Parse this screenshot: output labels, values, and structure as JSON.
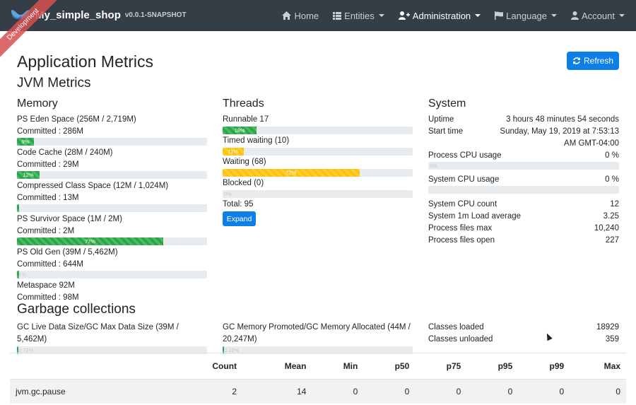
{
  "navbar": {
    "brand_name": "My_simple_shop",
    "brand_version": "v0.0.1-SNAPSHOT",
    "ribbon": "Development",
    "items": [
      {
        "label": "Home",
        "icon": "home-icon",
        "dropdown": false,
        "active": false
      },
      {
        "label": "Entities",
        "icon": "th-list-icon",
        "dropdown": true,
        "active": false
      },
      {
        "label": "Administration",
        "icon": "user-plus-icon",
        "dropdown": true,
        "active": true
      },
      {
        "label": "Language",
        "icon": "flag-icon",
        "dropdown": true,
        "active": false
      },
      {
        "label": "Account",
        "icon": "user-icon",
        "dropdown": true,
        "active": false
      }
    ]
  },
  "page": {
    "title": "Application Metrics",
    "refresh_label": "Refresh",
    "jvm_title": "JVM Metrics"
  },
  "memory": {
    "title": "Memory",
    "items": [
      {
        "name": "PS Eden Space (256M / 2,719M)",
        "committed": "Committed : 286M",
        "percent": 9,
        "bar_text": "9%"
      },
      {
        "name": "Code Cache (28M / 240M)",
        "committed": "Committed : 29M",
        "percent": 12,
        "bar_text": "12%"
      },
      {
        "name": "Compressed Class Space (12M / 1,024M)",
        "committed": "Committed : 13M",
        "percent": 1,
        "bar_text": ""
      },
      {
        "name": "PS Survivor Space (1M / 2M)",
        "committed": "Committed : 2M",
        "percent": 77,
        "bar_text": "77%"
      },
      {
        "name": "PS Old Gen (39M / 5,462M)",
        "committed": "Committed : 644M",
        "percent": 1,
        "bar_text": "1%"
      },
      {
        "name": "Metaspace 92M",
        "committed": "Committed : 98M",
        "percent": null,
        "bar_text": ""
      }
    ]
  },
  "threads": {
    "title": "Threads",
    "items": [
      {
        "label": "Runnable 17",
        "percent": 18,
        "bar_text": "18%",
        "color": "#28a745"
      },
      {
        "label": "Timed waiting (10)",
        "percent": 11,
        "bar_text": "11%",
        "color": "#ffc107"
      },
      {
        "label": "Waiting (68)",
        "percent": 72,
        "bar_text": "72%",
        "color": "#ffc107"
      },
      {
        "label": "Blocked (0)",
        "percent": 0,
        "bar_text": "0%",
        "color": "#dc3545"
      }
    ],
    "total": "Total: 95",
    "expand_label": "Expand"
  },
  "system": {
    "title": "System",
    "uptime_label": "Uptime",
    "uptime_value": "3 hours 48 minutes 54 seconds",
    "start_label": "Start time",
    "start_value_1": "Sunday, May 19, 2019 at 7:53:13",
    "start_value_2": "AM GMT-04:00",
    "process_cpu_label": "Process CPU usage",
    "process_cpu_value": "0 %",
    "process_cpu_bar": "0%",
    "system_cpu_label": "System CPU usage",
    "system_cpu_value": "0 %",
    "system_cpu_bar": "",
    "rows": [
      {
        "label": "System CPU count",
        "value": "12"
      },
      {
        "label": "System 1m Load average",
        "value": "3.25"
      },
      {
        "label": "Process files max",
        "value": "10,240"
      },
      {
        "label": "Process files open",
        "value": "227"
      }
    ]
  },
  "gc": {
    "title": "Garbage collections",
    "live_label_1": "GC Live Data Size/GC Max Data Size (39M /",
    "live_label_2": "5,462M)",
    "live_percent": 0.72,
    "live_bar": "0.72%",
    "promoted_label_1": "GC Memory Promoted/GC Memory Allocated (44M /",
    "promoted_label_2": "20,247M)",
    "promoted_percent": 0.22,
    "promoted_bar": "0.22%",
    "classes_loaded_label": "Classes loaded",
    "classes_loaded_value": "18929",
    "classes_unloaded_label": "Classes unloaded",
    "classes_unloaded_value": "359",
    "table": {
      "headers": [
        "",
        "Count",
        "Mean",
        "Min",
        "p50",
        "p75",
        "p95",
        "p99",
        "Max"
      ],
      "rows": [
        [
          "jvm.gc.pause",
          "2",
          "14",
          "0",
          "0",
          "0",
          "0",
          "0",
          "0"
        ]
      ]
    }
  },
  "colors": {
    "navbar": "#353d47",
    "primary": "#0d7fe6",
    "success": "#28a745",
    "warning": "#ffc107",
    "danger": "#dc3545"
  }
}
